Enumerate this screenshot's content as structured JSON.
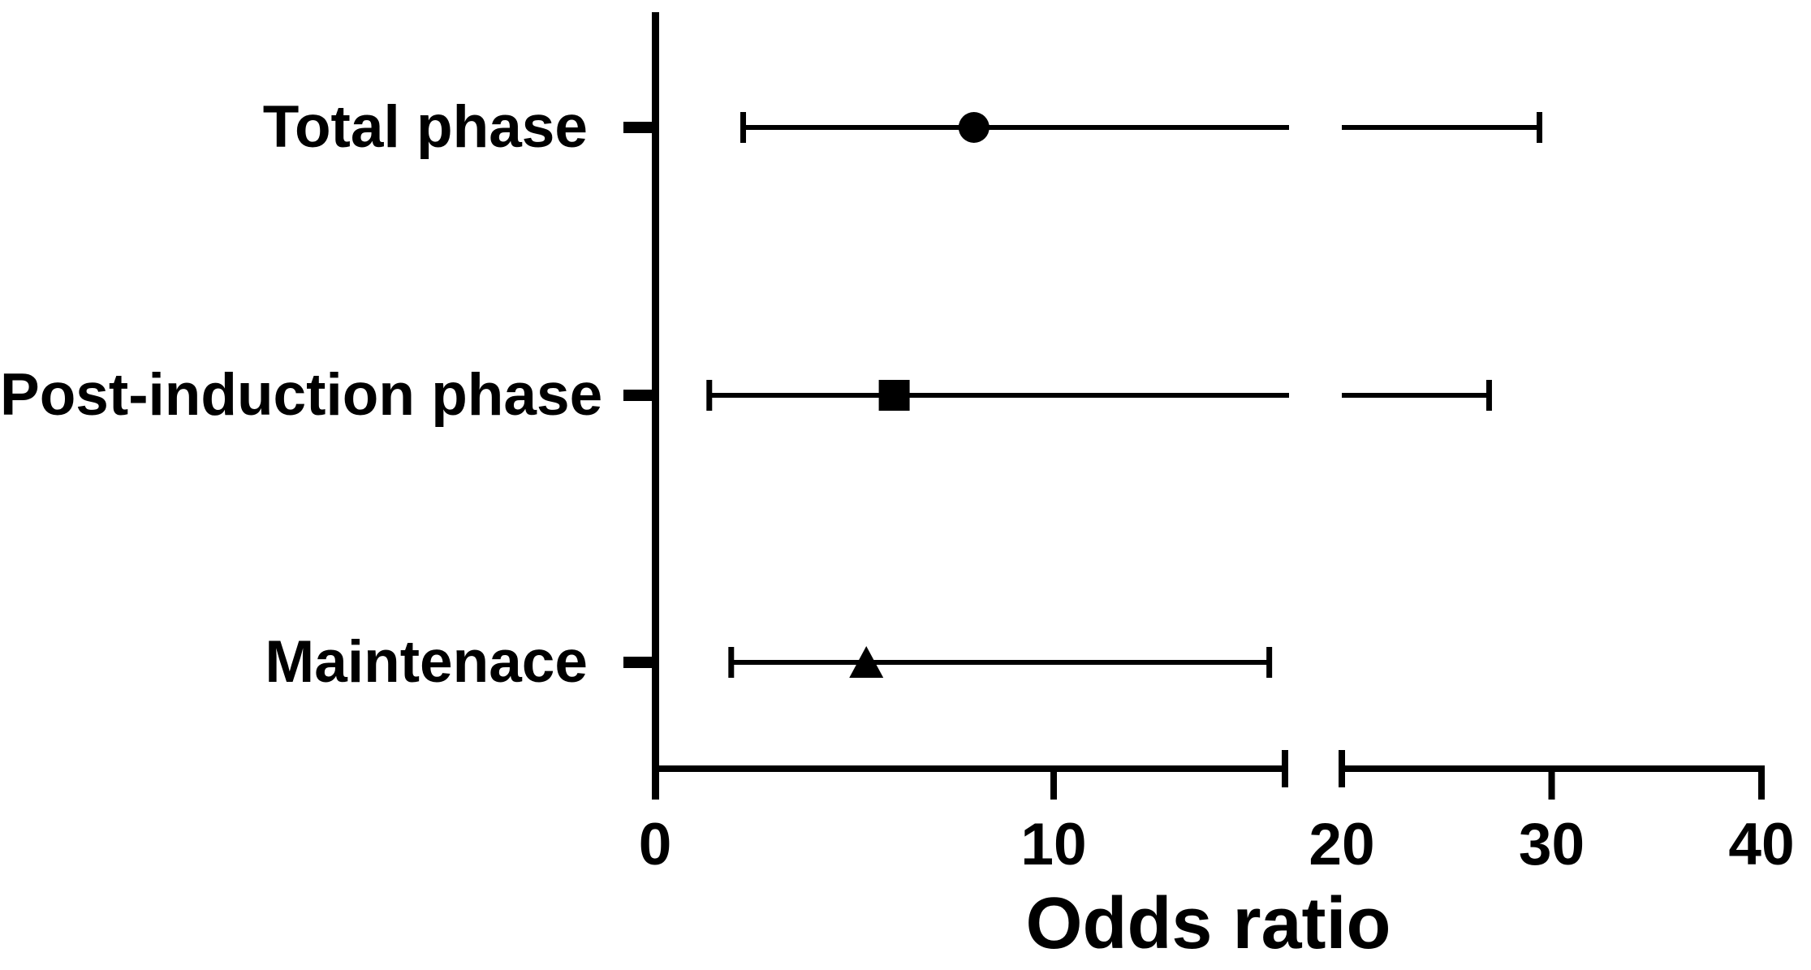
{
  "figure": {
    "xlabel": "Odds ratio"
  },
  "chart_data": {
    "type": "scatter",
    "subtype": "forest-plot-horizontal-error-bars",
    "title": "",
    "xlabel": "Odds ratio",
    "ylabel": "",
    "categories": [
      "Total phase",
      "Post-induction phase",
      "Maintenace"
    ],
    "series": [
      {
        "name": "Total phase",
        "marker": "circle",
        "or": 8.0,
        "ci_low": 2.2,
        "ci_high": 29.4
      },
      {
        "name": "Post-induction phase",
        "marker": "square",
        "or": 6.0,
        "ci_low": 1.35,
        "ci_high": 27.0
      },
      {
        "name": "Maintenace",
        "marker": "triangle",
        "or": 5.3,
        "ci_low": 1.9,
        "ci_high": 15.4
      }
    ],
    "x_ticks": [
      0,
      10,
      20,
      30,
      40
    ],
    "xlim": [
      0,
      40
    ],
    "axis_break": {
      "left_end_value": 15.8,
      "right_start_value": 20
    },
    "error_bars_gap_at_break": true,
    "grid": false,
    "legend": "none",
    "colors": {
      "foreground": "#000000",
      "background": "#ffffff"
    }
  }
}
